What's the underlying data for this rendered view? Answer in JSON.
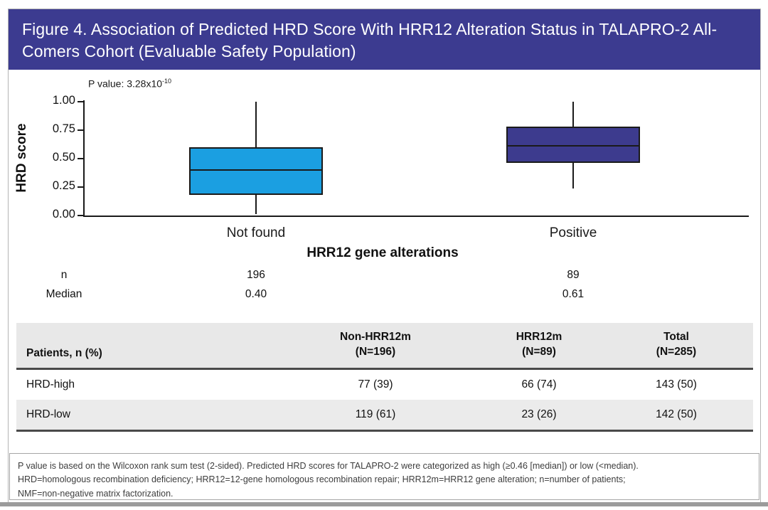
{
  "title": "Figure 4. Association of Predicted HRD Score With HRR12 Alteration Status in TALAPRO-2 All-Comers Cohort (Evaluable Safety Population)",
  "colors": {
    "title_bar": "#3c3b90",
    "box_not_found": "#1b9fe1",
    "box_positive": "#3d3b8e"
  },
  "chart_data": {
    "type": "boxplot",
    "ylabel": "HRD score",
    "xlabel": "HRR12 gene alterations",
    "ylim": [
      0.0,
      1.0
    ],
    "yticks": [
      "1.00",
      "0.75",
      "0.50",
      "0.25",
      "0.00"
    ],
    "p_value_label": "P value: 3.28x10",
    "p_value_exponent": "-10",
    "groups": [
      {
        "label": "Not found",
        "n": "196",
        "median_label": "0.40",
        "whisker_low": 0.01,
        "q1": 0.18,
        "median": 0.4,
        "q3": 0.6,
        "whisker_high": 1.0,
        "color": "#1b9fe1"
      },
      {
        "label": "Positive",
        "n": "89",
        "median_label": "0.61",
        "whisker_low": 0.24,
        "q1": 0.46,
        "median": 0.61,
        "q3": 0.78,
        "whisker_high": 1.0,
        "color": "#3d3b8e"
      }
    ],
    "stat_rows": [
      {
        "label": "n"
      },
      {
        "label": "Median"
      }
    ]
  },
  "table": {
    "row_header_label": "Patients, n (%)",
    "col_headers": [
      {
        "line1": "Non-HRR12m",
        "line2": "(N=196)"
      },
      {
        "line1": "HRR12m",
        "line2": "(N=89)"
      },
      {
        "line1": "Total",
        "line2": "(N=285)"
      }
    ],
    "rows": [
      {
        "label": "HRD-high",
        "values": [
          "77 (39)",
          "66 (74)",
          "143 (50)"
        ]
      },
      {
        "label": "HRD-low",
        "values": [
          "119 (61)",
          "23 (26)",
          "142 (50)"
        ]
      }
    ]
  },
  "footnote": {
    "line1": "P value is based on the Wilcoxon rank sum test (2-sided). Predicted HRD scores for TALAPRO-2 were categorized as high (≥0.46 [median]) or low (<median).",
    "line2": "HRD=homologous recombination deficiency; HRR12=12-gene homologous recombination repair; HRR12m=HRR12 gene alteration; n=number of patients;",
    "line3": "NMF=non-negative matrix factorization."
  }
}
